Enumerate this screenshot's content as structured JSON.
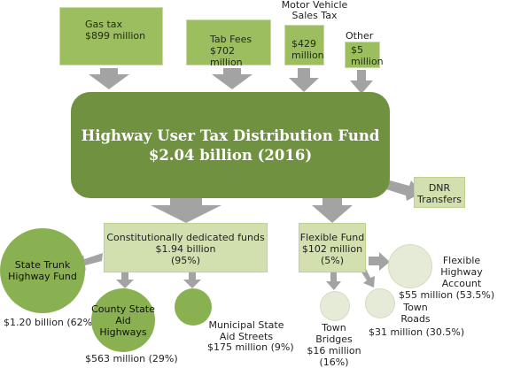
{
  "sources": {
    "gas_tax": {
      "name": "Gas tax",
      "amount": "$899 million"
    },
    "tab_fees": {
      "name": "Tab Fees",
      "amount": "$702 million"
    },
    "mvst": {
      "name_line1": "Motor Vehicle",
      "name_line2": "Sales Tax",
      "amount_line1": "$429",
      "amount_line2": "million"
    },
    "other": {
      "name": "Other",
      "amount_line1": "$5",
      "amount_line2": "million"
    }
  },
  "fund": {
    "title": "Highway User Tax Distribution Fund",
    "subtitle": "$2.04 billion (2016)"
  },
  "dnr": {
    "line1": "DNR",
    "line2": "Transfers"
  },
  "constitutional": {
    "name": "Constitutionally dedicated funds",
    "amount": "$1.94 billion",
    "share": "(95%)"
  },
  "flexible": {
    "name": "Flexible Fund",
    "amount": "$102 million",
    "share": "(5%)"
  },
  "recipients": {
    "state_trunk": {
      "name_line1": "State Trunk",
      "name_line2": "Highway Fund",
      "value": "$1.20 billion (62%)"
    },
    "county": {
      "name_line1": "County State",
      "name_line2": "Aid Highways",
      "value": "$563 million (29%)"
    },
    "municipal": {
      "name_line1": "Municipal State",
      "name_line2": "Aid Streets",
      "value": "$175 million (9%)"
    },
    "town_bridges": {
      "name_line1": "Town",
      "name_line2": "Bridges",
      "value_line1": "$16 million",
      "value_line2": "(16%)"
    },
    "town_roads": {
      "name_line1": "Town",
      "name_line2": "Roads",
      "value": "$31 million (30.5%)"
    },
    "flex_account": {
      "name_line1": "Flexible",
      "name_line2": "Highway",
      "name_line3": "Account",
      "value": "$55 million (53.5%)"
    }
  },
  "colors": {
    "source": "#9cbe5e",
    "fund": "#6f9140",
    "pale": "#d2dfae",
    "circle_dark": "#8ab151",
    "circle_light": "#e5ebd6",
    "arrow": "#a3a3a3"
  }
}
